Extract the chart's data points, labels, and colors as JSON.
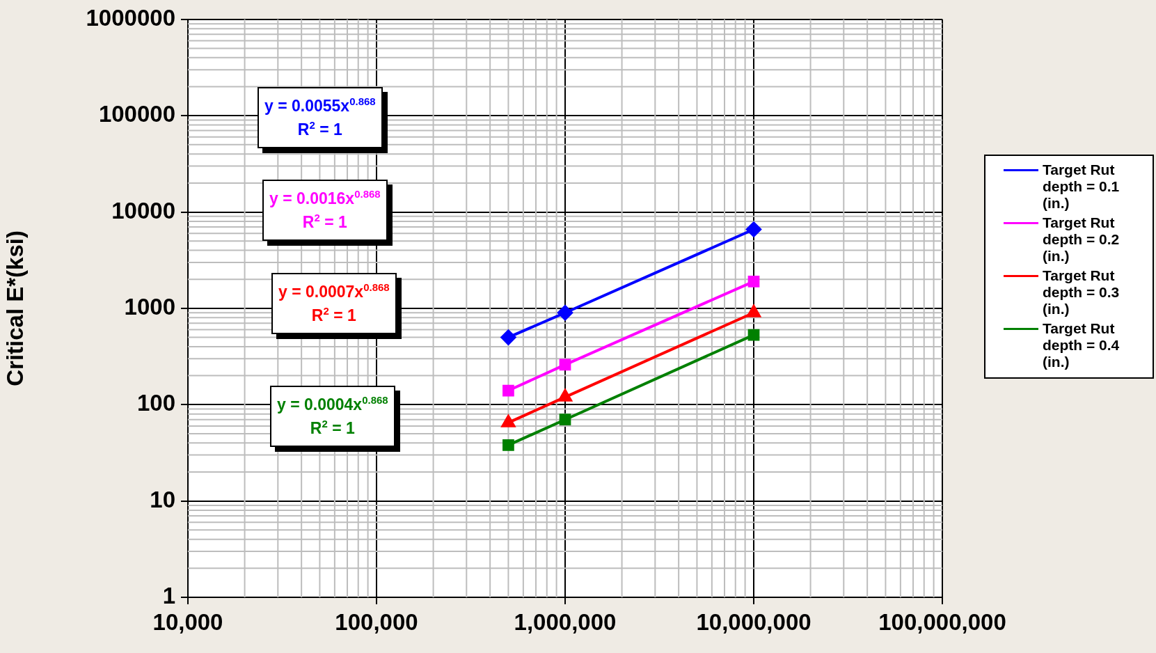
{
  "chart_data": {
    "type": "line",
    "ylabel": "Critical E*(ksi)",
    "x": [
      500000,
      1000000,
      10000000
    ],
    "series": [
      {
        "name": "Target Rut depth = 0.1 (in.)",
        "color": "#0000ff",
        "marker": "diamond",
        "values": [
          500,
          900,
          6600
        ]
      },
      {
        "name": "Target Rut depth = 0.2 (in.)",
        "color": "#ff00ff",
        "marker": "square",
        "values": [
          140,
          260,
          1900
        ]
      },
      {
        "name": "Target Rut depth = 0.3 (in.)",
        "color": "#ff0000",
        "marker": "triangle",
        "values": [
          65,
          120,
          900
        ]
      },
      {
        "name": "Target Rut depth = 0.4 (in.)",
        "color": "#008000",
        "marker": "square",
        "values": [
          38,
          70,
          530
        ]
      }
    ],
    "log": "xy",
    "xlim": [
      10000,
      100000000
    ],
    "xticks": [
      {
        "value": 10000,
        "label": "10,000"
      },
      {
        "value": 100000,
        "label": "100,000"
      },
      {
        "value": 1000000,
        "label": "1,000,000"
      },
      {
        "value": 10000000,
        "label": "10,000,000"
      },
      {
        "value": 100000000,
        "label": "100,000,000"
      }
    ],
    "ylim": [
      1,
      1000000
    ],
    "yticks": [
      1,
      10,
      100,
      1000,
      10000,
      100000,
      1000000
    ],
    "grid": true,
    "legend": "right",
    "line_style": "solid",
    "annotations": [
      "y = 0.0055x$^{0.868}$",
      "R$^{2}$ = 1",
      "y = 0.0016x$^{0.868}$",
      "R$^{2}$ = 1",
      "y = 0.0007x$^{0.868}$",
      "R$^{2}$ = 1",
      "y = 0.0004x$^{0.868}$",
      "R$^{2}$ = 1"
    ]
  }
}
